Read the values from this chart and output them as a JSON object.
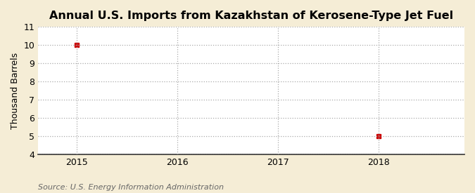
{
  "title": "Annual U.S. Imports from Kazakhstan of Kerosene-Type Jet Fuel",
  "ylabel": "Thousand Barrels",
  "source": "Source: U.S. Energy Information Administration",
  "background_color": "#F5EDD6",
  "plot_bg_color": "#FFFFFF",
  "x_data": [
    2015,
    2018
  ],
  "y_data": [
    10,
    5
  ],
  "point_color": "#CC0000",
  "xlim": [
    2014.62,
    2018.85
  ],
  "ylim": [
    4,
    11
  ],
  "yticks": [
    4,
    5,
    6,
    7,
    8,
    9,
    10,
    11
  ],
  "xticks": [
    2015,
    2016,
    2017,
    2018
  ],
  "title_fontsize": 11.5,
  "axis_fontsize": 9,
  "source_fontsize": 8,
  "grid_color": "#AAAAAA",
  "grid_linestyle": ":",
  "grid_linewidth": 0.9
}
